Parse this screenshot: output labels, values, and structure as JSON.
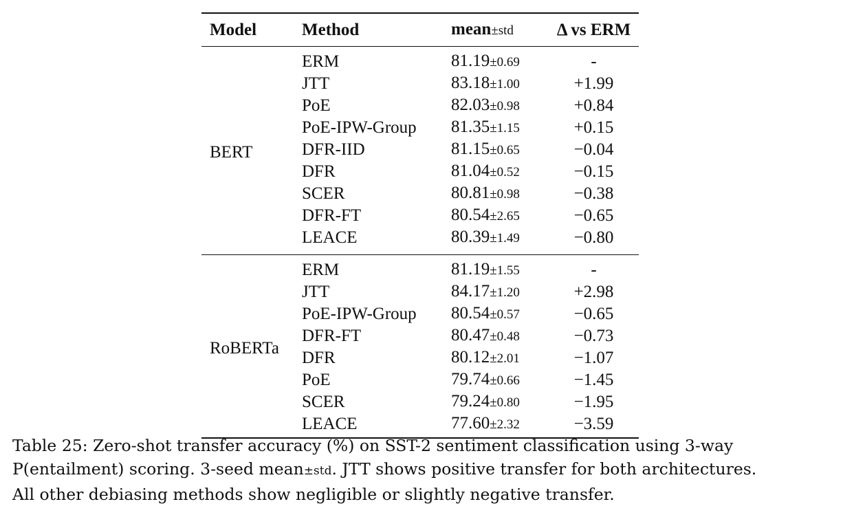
{
  "table": {
    "headers": {
      "model": "Model",
      "method": "Method",
      "mean": "mean",
      "mean_std": "±std",
      "delta": "Δ vs ERM"
    },
    "groups": [
      {
        "model": "BERT",
        "rows": [
          {
            "method": "ERM",
            "mean": "81.19",
            "std": "±0.69",
            "delta": "-"
          },
          {
            "method": "JTT",
            "mean": "83.18",
            "std": "±1.00",
            "delta": "+1.99"
          },
          {
            "method": "PoE",
            "mean": "82.03",
            "std": "±0.98",
            "delta": "+0.84"
          },
          {
            "method": "PoE-IPW-Group",
            "mean": "81.35",
            "std": "±1.15",
            "delta": "+0.15"
          },
          {
            "method": "DFR-IID",
            "mean": "81.15",
            "std": "±0.65",
            "delta": "−0.04"
          },
          {
            "method": "DFR",
            "mean": "81.04",
            "std": "±0.52",
            "delta": "−0.15"
          },
          {
            "method": "SCER",
            "mean": "80.81",
            "std": "±0.98",
            "delta": "−0.38"
          },
          {
            "method": "DFR-FT",
            "mean": "80.54",
            "std": "±2.65",
            "delta": "−0.65"
          },
          {
            "method": "LEACE",
            "mean": "80.39",
            "std": "±1.49",
            "delta": "−0.80"
          }
        ]
      },
      {
        "model": "RoBERTa",
        "rows": [
          {
            "method": "ERM",
            "mean": "81.19",
            "std": "±1.55",
            "delta": "-"
          },
          {
            "method": "JTT",
            "mean": "84.17",
            "std": "±1.20",
            "delta": "+2.98"
          },
          {
            "method": "PoE-IPW-Group",
            "mean": "80.54",
            "std": "±0.57",
            "delta": "−0.65"
          },
          {
            "method": "DFR-FT",
            "mean": "80.47",
            "std": "±0.48",
            "delta": "−0.73"
          },
          {
            "method": "DFR",
            "mean": "80.12",
            "std": "±2.01",
            "delta": "−1.07"
          },
          {
            "method": "PoE",
            "mean": "79.74",
            "std": "±0.66",
            "delta": "−1.45"
          },
          {
            "method": "SCER",
            "mean": "79.24",
            "std": "±0.80",
            "delta": "−1.95"
          },
          {
            "method": "LEACE",
            "mean": "77.60",
            "std": "±2.32",
            "delta": "−3.59"
          }
        ]
      }
    ]
  },
  "caption": {
    "line1": "Table 25: Zero-shot transfer accuracy (%) on SST-2 sentiment classification using 3-way",
    "line2_a": "P(entailment) scoring. 3-seed mean",
    "line2_std": "±std",
    "line2_b": ". JTT shows positive transfer for both architectures.",
    "line3": "All other debiasing methods show negligible or slightly negative transfer."
  }
}
